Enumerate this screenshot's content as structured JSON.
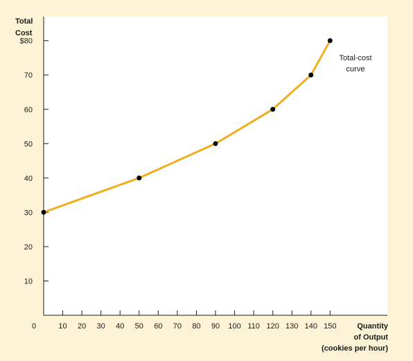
{
  "chart_data": {
    "type": "line",
    "y_title_lines": [
      "Total",
      "Cost"
    ],
    "x_title_lines": [
      "Quantity",
      "of Output",
      "(cookies per hour)"
    ],
    "x_ticks": [
      0,
      10,
      20,
      30,
      40,
      50,
      60,
      70,
      80,
      90,
      100,
      110,
      120,
      130,
      140,
      150
    ],
    "x_tick_labels": [
      "0",
      "10",
      "20",
      "30",
      "40",
      "50",
      "60",
      "70",
      "80",
      "90",
      "100",
      "110",
      "120",
      "130",
      "140",
      "150"
    ],
    "y_ticks": [
      10,
      20,
      30,
      40,
      50,
      60,
      70,
      80
    ],
    "y_tick_labels": [
      "10",
      "20",
      "30",
      "40",
      "50",
      "60",
      "70",
      "$80"
    ],
    "xlim": [
      0,
      180
    ],
    "ylim": [
      0,
      87
    ],
    "grid": false,
    "series": [
      {
        "name": "",
        "x": [
          0,
          50,
          90,
          120,
          140,
          150
        ],
        "y": [
          30,
          40,
          50,
          60,
          70,
          80
        ]
      }
    ],
    "annotation_lines": [
      "Total-cost",
      "curve"
    ],
    "colors": {
      "background": "#fdf3d6",
      "plot_background": "#ffffff",
      "line": "#efad1f",
      "points": "#000000",
      "axis": "#1a1a1a"
    }
  }
}
